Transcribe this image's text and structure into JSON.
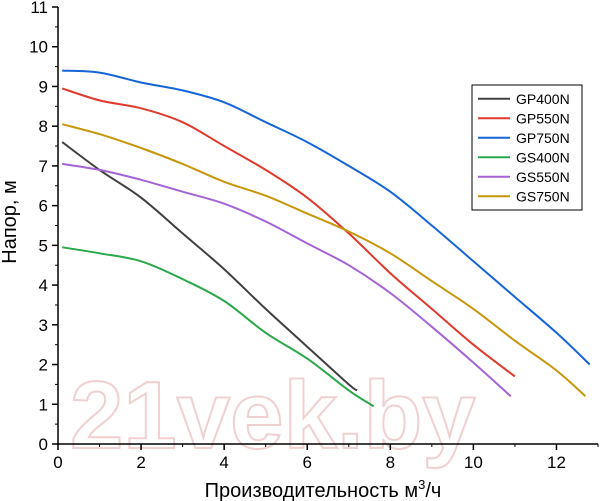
{
  "chart_data": {
    "type": "line",
    "title": "",
    "xlabel": "Производительность м",
    "xlabel_sup": "3",
    "xlabel_suffix": "/ч",
    "ylabel": "Напор, м",
    "xlim": [
      0,
      13
    ],
    "ylim": [
      0,
      11
    ],
    "xticks": [
      0,
      2,
      4,
      6,
      8,
      10,
      12
    ],
    "yticks": [
      0,
      1,
      2,
      3,
      4,
      5,
      6,
      7,
      8,
      9,
      10,
      11
    ],
    "legend_position": "top-right",
    "watermark": "21vek.by",
    "series": [
      {
        "name": "GP400N",
        "color": "#404040",
        "x": [
          0.1,
          1,
          2,
          3,
          4,
          5,
          6,
          7,
          7.2
        ],
        "y": [
          7.6,
          6.9,
          6.2,
          5.3,
          4.4,
          3.4,
          2.45,
          1.5,
          1.35
        ]
      },
      {
        "name": "GP550N",
        "color": "#e03a2e",
        "x": [
          0.1,
          1,
          2,
          3,
          4,
          5,
          6,
          7,
          8,
          9,
          10,
          11
        ],
        "y": [
          8.95,
          8.65,
          8.45,
          8.1,
          7.5,
          6.9,
          6.2,
          5.3,
          4.3,
          3.4,
          2.5,
          1.7
        ]
      },
      {
        "name": "GP750N",
        "color": "#1565d8",
        "x": [
          0.1,
          1,
          2,
          3,
          4,
          5,
          6,
          7,
          8,
          9,
          10,
          11,
          12,
          12.8
        ],
        "y": [
          9.4,
          9.35,
          9.1,
          8.9,
          8.6,
          8.1,
          7.6,
          7.0,
          6.35,
          5.5,
          4.6,
          3.7,
          2.8,
          2.0
        ]
      },
      {
        "name": "GS400N",
        "color": "#2aa84a",
        "x": [
          0.1,
          1,
          2,
          3,
          4,
          5,
          6,
          7,
          7.6
        ],
        "y": [
          4.95,
          4.8,
          4.6,
          4.15,
          3.6,
          2.8,
          2.15,
          1.35,
          0.95
        ]
      },
      {
        "name": "GS550N",
        "color": "#a463d6",
        "x": [
          0.1,
          1,
          2,
          3,
          4,
          5,
          6,
          7,
          8,
          9,
          10,
          10.9
        ],
        "y": [
          7.05,
          6.9,
          6.65,
          6.35,
          6.05,
          5.6,
          5.05,
          4.5,
          3.8,
          2.95,
          2.05,
          1.2
        ]
      },
      {
        "name": "GS750N",
        "color": "#c8960a",
        "x": [
          0.1,
          1,
          2,
          3,
          4,
          5,
          6,
          7,
          8,
          9,
          10,
          11,
          12,
          12.7
        ],
        "y": [
          8.05,
          7.8,
          7.45,
          7.05,
          6.6,
          6.25,
          5.8,
          5.35,
          4.8,
          4.1,
          3.4,
          2.6,
          1.85,
          1.2
        ]
      }
    ]
  }
}
